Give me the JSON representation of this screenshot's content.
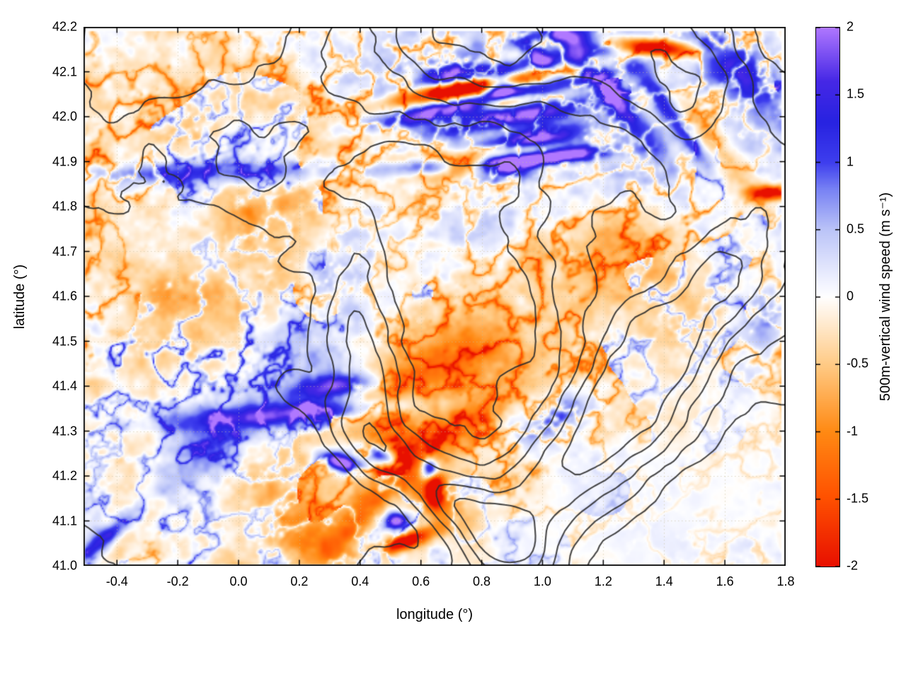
{
  "chart_data": {
    "type": "heatmap",
    "title": "",
    "xlabel": "longitude (°)",
    "ylabel": "latitude (°)",
    "xlim": [
      -0.51,
      1.8
    ],
    "ylim": [
      41.0,
      42.2
    ],
    "data_extent": [
      -0.505,
      1.785,
      41.003,
      42.192
    ],
    "grid": true,
    "xticks": [
      {
        "v": -0.4,
        "label": "-0.4"
      },
      {
        "v": -0.2,
        "label": "-0.2"
      },
      {
        "v": 0.0,
        "label": "0.0"
      },
      {
        "v": 0.2,
        "label": "0.2"
      },
      {
        "v": 0.4,
        "label": "0.4"
      },
      {
        "v": 0.6,
        "label": "0.6"
      },
      {
        "v": 0.8,
        "label": "0.8"
      },
      {
        "v": 1.0,
        "label": "1.0"
      },
      {
        "v": 1.2,
        "label": "1.2"
      },
      {
        "v": 1.4,
        "label": "1.4"
      },
      {
        "v": 1.6,
        "label": "1.6"
      },
      {
        "v": 1.8,
        "label": "1.8"
      }
    ],
    "yticks": [
      {
        "v": 41.0,
        "label": "41.0"
      },
      {
        "v": 41.1,
        "label": "41.1"
      },
      {
        "v": 41.2,
        "label": "41.2"
      },
      {
        "v": 41.3,
        "label": "41.3"
      },
      {
        "v": 41.4,
        "label": "41.4"
      },
      {
        "v": 41.5,
        "label": "41.5"
      },
      {
        "v": 41.6,
        "label": "41.6"
      },
      {
        "v": 41.7,
        "label": "41.7"
      },
      {
        "v": 41.8,
        "label": "41.8"
      },
      {
        "v": 41.9,
        "label": "41.9"
      },
      {
        "v": 42.0,
        "label": "42.0"
      },
      {
        "v": 42.1,
        "label": "42.1"
      },
      {
        "v": 42.2,
        "label": "42.2"
      }
    ],
    "colorbar": {
      "label": "500m-vertical wind speed (m s⁻¹)",
      "min": -2,
      "max": 2,
      "ticks": [
        {
          "v": 2,
          "label": "2"
        },
        {
          "v": 1.5,
          "label": "1.5"
        },
        {
          "v": 1,
          "label": "1"
        },
        {
          "v": 0.5,
          "label": "0.5"
        },
        {
          "v": 0,
          "label": "0"
        },
        {
          "v": -0.5,
          "label": "-0.5"
        },
        {
          "v": -1,
          "label": "-1"
        },
        {
          "v": -1.5,
          "label": "-1.5"
        },
        {
          "v": -2,
          "label": "-2"
        }
      ],
      "stops": [
        [
          -2.0,
          "#e81000"
        ],
        [
          -1.5,
          "#ff5000"
        ],
        [
          -1.0,
          "#ff8a14"
        ],
        [
          -0.5,
          "#ffcb86"
        ],
        [
          -0.15,
          "#ffefdb"
        ],
        [
          0.0,
          "#ffffff"
        ],
        [
          0.12,
          "#f0f2ff"
        ],
        [
          0.5,
          "#bbc4f8"
        ],
        [
          0.8,
          "#7882f4"
        ],
        [
          1.0,
          "#3e3eee"
        ],
        [
          1.3,
          "#2823e1"
        ],
        [
          1.6,
          "#4628e6"
        ],
        [
          2.0,
          "#b078ff"
        ]
      ]
    },
    "field": {
      "features": [
        {
          "x": 0.72,
          "y": 42.065,
          "sx": 0.15,
          "sy": 0.013,
          "rot": 6,
          "amp": -2.6
        },
        {
          "x": 0.88,
          "y": 42.035,
          "sx": 0.06,
          "sy": 0.011,
          "rot": 6,
          "amp": -2.1
        },
        {
          "x": 0.8,
          "y": 42.005,
          "sx": 0.2,
          "sy": 0.02,
          "rot": 5,
          "amp": 2.2
        },
        {
          "x": 0.72,
          "y": 42.1,
          "sx": 0.07,
          "sy": 0.018,
          "rot": 5,
          "amp": 1.9
        },
        {
          "x": 0.86,
          "y": 42.07,
          "sx": 0.035,
          "sy": 0.018,
          "rot": 0,
          "amp": 2.6
        },
        {
          "x": 0.82,
          "y": 42.05,
          "sx": 0.25,
          "sy": 0.055,
          "rot": 8,
          "amp": 1.1,
          "wl": 0.06,
          "ph": 1.2
        },
        {
          "x": 0.97,
          "y": 41.955,
          "sx": 0.11,
          "sy": 0.018,
          "rot": 8,
          "amp": 1.6
        },
        {
          "x": 0.75,
          "y": 41.895,
          "sx": 0.05,
          "sy": 0.012,
          "rot": 2,
          "amp": -2.3
        },
        {
          "x": 0.88,
          "y": 41.885,
          "sx": 0.07,
          "sy": 0.015,
          "rot": 2,
          "amp": 2.5
        },
        {
          "x": 0.85,
          "y": 41.9,
          "sx": 0.2,
          "sy": 0.03,
          "rot": 3,
          "amp": 0.9,
          "wl": 0.05,
          "ph": 0
        },
        {
          "x": 1.07,
          "y": 41.915,
          "sx": 0.1,
          "sy": 0.014,
          "rot": 6,
          "amp": 1.7
        },
        {
          "x": -0.08,
          "y": 41.875,
          "sx": 0.42,
          "sy": 0.018,
          "rot": 1,
          "amp": 1.15
        },
        {
          "x": 1.36,
          "y": 42.155,
          "sx": 0.1,
          "sy": 0.013,
          "rot": -4,
          "amp": -2.7
        },
        {
          "x": 1.22,
          "y": 42.05,
          "sx": 0.13,
          "sy": 0.022,
          "rot": -38,
          "amp": 1.6
        },
        {
          "x": 1.43,
          "y": 42.0,
          "sx": 0.12,
          "sy": 0.018,
          "rot": -42,
          "amp": 1.4
        },
        {
          "x": 0.97,
          "y": 42.145,
          "sx": 0.05,
          "sy": 0.018,
          "rot": -30,
          "amp": 1.7
        },
        {
          "x": 1.1,
          "y": 42.175,
          "sx": 0.08,
          "sy": 0.016,
          "rot": -8,
          "amp": 1.5
        },
        {
          "x": 1.75,
          "y": 41.83,
          "sx": 0.05,
          "sy": 0.011,
          "rot": 0,
          "amp": -2.2
        },
        {
          "x": -0.12,
          "y": 41.25,
          "sx": 0.4,
          "sy": 0.055,
          "rot": 25,
          "amp": 0.85
        },
        {
          "x": 0.33,
          "y": 41.4,
          "sx": 0.1,
          "sy": 0.02,
          "rot": 5,
          "amp": 1.9
        },
        {
          "x": 0.28,
          "y": 41.345,
          "sx": 0.17,
          "sy": 0.016,
          "rot": 3,
          "amp": 1.1
        },
        {
          "x": 0.05,
          "y": 41.33,
          "sx": 0.28,
          "sy": 0.02,
          "rot": 2,
          "amp": 0.9
        },
        {
          "x": 0.34,
          "y": 41.23,
          "sx": 0.05,
          "sy": 0.015,
          "rot": -10,
          "amp": 2.7
        },
        {
          "x": 0.47,
          "y": 41.245,
          "sx": 0.045,
          "sy": 0.014,
          "rot": -15,
          "amp": 2.0
        },
        {
          "x": 0.63,
          "y": 41.215,
          "sx": 0.022,
          "sy": 0.018,
          "rot": 0,
          "amp": 2.9
        },
        {
          "x": 0.645,
          "y": 41.17,
          "sx": 0.02,
          "sy": 0.028,
          "rot": 0,
          "amp": -2.6
        },
        {
          "x": 0.55,
          "y": 41.055,
          "sx": 0.065,
          "sy": 0.012,
          "rot": 12,
          "amp": -2.6
        },
        {
          "x": 0.52,
          "y": 41.1,
          "sx": 0.028,
          "sy": 0.014,
          "rot": 0,
          "amp": 2.3
        },
        {
          "x": 0.42,
          "y": 41.13,
          "sx": 0.1,
          "sy": 0.028,
          "rot": 35,
          "amp": -1.1
        },
        {
          "x": 1.55,
          "y": 41.95,
          "sx": 0.12,
          "sy": 0.032,
          "rot": -35,
          "amp": -0.85
        },
        {
          "x": 0.7,
          "y": 41.3,
          "sx": 0.15,
          "sy": 0.035,
          "rot": 20,
          "amp": -0.9
        },
        {
          "x": 0.55,
          "y": 41.42,
          "sx": 0.2,
          "sy": 0.045,
          "rot": 15,
          "amp": -0.7
        },
        {
          "x": -0.38,
          "y": 41.12,
          "sx": 0.1,
          "sy": 0.055,
          "rot": 40,
          "amp": -0.8
        },
        {
          "x": -0.44,
          "y": 41.06,
          "sx": 0.08,
          "sy": 0.016,
          "rot": 30,
          "amp": 1.5
        },
        {
          "x": 1.32,
          "y": 41.64,
          "sx": 0.25,
          "sy": 0.09,
          "rot": -20,
          "amp": -0.45
        },
        {
          "x": 0.88,
          "y": 41.77,
          "sx": 0.18,
          "sy": 0.05,
          "rot": 10,
          "amp": 0.7
        },
        {
          "x": 1.65,
          "y": 42.1,
          "sx": 0.14,
          "sy": 0.045,
          "rot": -30,
          "amp": 1.2
        },
        {
          "x": 0.3,
          "y": 41.65,
          "sx": 0.18,
          "sy": 0.075,
          "rot": 40,
          "amp": 0.7
        },
        {
          "x": 1.73,
          "y": 41.55,
          "sx": 0.07,
          "sy": 0.05,
          "rot": 0,
          "amp": 1.1
        },
        {
          "x": 0.2,
          "y": 41.08,
          "sx": 0.15,
          "sy": 0.045,
          "rot": -25,
          "amp": -0.9
        },
        {
          "x": 0.02,
          "y": 41.7,
          "sx": 0.2,
          "sy": 0.09,
          "rot": 30,
          "amp": -0.4
        },
        {
          "x": 0.62,
          "y": 41.18,
          "sx": 0.14,
          "sy": 0.05,
          "rot": -35,
          "amp": -1.0
        },
        {
          "x": 1.05,
          "y": 41.33,
          "sx": 0.1,
          "sy": 0.03,
          "rot": 15,
          "amp": 1.2
        },
        {
          "x": 0.85,
          "y": 41.55,
          "sx": 0.3,
          "sy": 0.1,
          "rot": 10,
          "amp": -0.3
        }
      ],
      "bias": [
        {
          "x": 0.1,
          "y": 41.55,
          "sx": 0.55,
          "sy": 0.28,
          "rot": 0,
          "amp": -0.26
        },
        {
          "x": -0.2,
          "y": 42.05,
          "sx": 0.3,
          "sy": 0.13,
          "rot": 0,
          "amp": -0.28
        },
        {
          "x": 1.25,
          "y": 42.0,
          "sx": 0.35,
          "sy": 0.2,
          "rot": 0,
          "amp": 0.45
        },
        {
          "x": 1.35,
          "y": 41.7,
          "sx": 0.35,
          "sy": 0.14,
          "rot": 0,
          "amp": -0.28
        },
        {
          "x": 0.75,
          "y": 41.35,
          "sx": 0.35,
          "sy": 0.12,
          "rot": 15,
          "amp": -0.3
        },
        {
          "x": 1.45,
          "y": 41.15,
          "sx": 0.4,
          "sy": 0.15,
          "rot": 0,
          "amp": 0.1
        },
        {
          "x": 0.55,
          "y": 42.1,
          "sx": 0.3,
          "sy": 0.1,
          "rot": 0,
          "amp": 0.25
        }
      ],
      "calm": [
        {
          "x": 1.5,
          "y": 41.12,
          "sx": 0.42,
          "sy": 0.15,
          "rot": 20,
          "f": 0.25
        },
        {
          "x": 1.05,
          "y": 41.1,
          "sx": 0.22,
          "sy": 0.09,
          "rot": 0,
          "f": 0.5
        }
      ]
    },
    "contours": {
      "color": "#2e2e2e",
      "level_fracs": [
        0.4,
        0.5,
        0.6,
        0.7,
        0.8
      ],
      "trend": [
        {
          "x": 0.75,
          "y": 42.18,
          "sx": 0.3,
          "sy": 0.13,
          "rot": 0,
          "amp": 0.55
        },
        {
          "x": 1.45,
          "y": 42.12,
          "sx": 0.25,
          "sy": 0.12,
          "rot": -20,
          "amp": 0.5
        },
        {
          "x": 0.42,
          "y": 41.45,
          "sx": 0.09,
          "sy": 0.2,
          "rot": 0,
          "amp": 0.42
        },
        {
          "x": 1.28,
          "y": 41.38,
          "sx": 0.45,
          "sy": 0.09,
          "rot": 38,
          "amp": 0.5
        },
        {
          "x": 0.75,
          "y": 41.12,
          "sx": 0.3,
          "sy": 0.06,
          "rot": -25,
          "amp": 0.5
        },
        {
          "x": 1.6,
          "y": 41.06,
          "sx": 0.35,
          "sy": 0.12,
          "rot": 20,
          "amp": -0.6
        },
        {
          "x": -0.25,
          "y": 41.6,
          "sx": 0.3,
          "sy": 0.25,
          "rot": 0,
          "amp": -0.22
        },
        {
          "x": 0.15,
          "y": 41.15,
          "sx": 0.25,
          "sy": 0.1,
          "rot": 0,
          "amp": -0.28
        },
        {
          "x": 0.85,
          "y": 41.62,
          "sx": 0.2,
          "sy": 0.12,
          "rot": 0,
          "amp": -0.18
        },
        {
          "x": 0.05,
          "y": 41.95,
          "sx": 0.25,
          "sy": 0.12,
          "rot": 0,
          "amp": 0.2
        }
      ]
    }
  }
}
